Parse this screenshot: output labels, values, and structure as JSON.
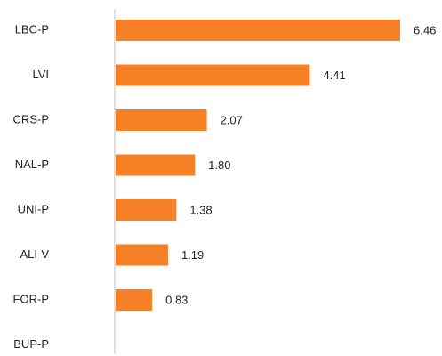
{
  "colors": {
    "bar": "#F58025",
    "axis": "#BFBFBF",
    "text": "#222222"
  },
  "chart_data": {
    "type": "bar",
    "orientation": "horizontal",
    "categories": [
      "LBC-P",
      "LVI",
      "CRS-P",
      "NAL-P",
      "UNI-P",
      "ALI-V",
      "FOR-P",
      "BUP-P"
    ],
    "values": [
      6.46,
      4.41,
      2.07,
      1.8,
      1.38,
      1.19,
      0.83,
      null
    ],
    "value_labels": [
      "6.46",
      "4.41",
      "2.07",
      "1.80",
      "1.38",
      "1.19",
      "0.83",
      ""
    ],
    "title": "",
    "xlabel": "",
    "ylabel": "",
    "xlim": [
      0,
      6.46
    ],
    "grid": false,
    "legend": "none"
  }
}
